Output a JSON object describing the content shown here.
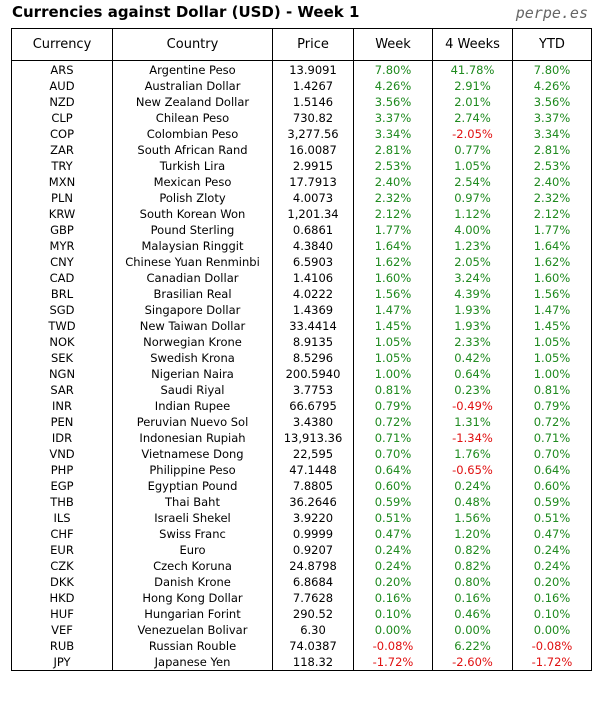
{
  "header": {
    "title": "Currencies against Dollar (USD) - Week 1",
    "site": "perpe.es"
  },
  "table": {
    "columns": [
      "Currency",
      "Country",
      "Price",
      "Week",
      "4 Weeks",
      "YTD"
    ],
    "rows": [
      [
        "ARS",
        "Argentine Peso",
        "13.9091",
        "7.80%",
        "41.78%",
        "7.80%"
      ],
      [
        "AUD",
        "Australian Dollar",
        "1.4267",
        "4.26%",
        "2.91%",
        "4.26%"
      ],
      [
        "NZD",
        "New Zealand Dollar",
        "1.5146",
        "3.56%",
        "2.01%",
        "3.56%"
      ],
      [
        "CLP",
        "Chilean Peso",
        "730.82",
        "3.37%",
        "2.74%",
        "3.37%"
      ],
      [
        "COP",
        "Colombian Peso",
        "3,277.56",
        "3.34%",
        "-2.05%",
        "3.34%"
      ],
      [
        "ZAR",
        "South African Rand",
        "16.0087",
        "2.81%",
        "0.77%",
        "2.81%"
      ],
      [
        "TRY",
        "Turkish Lira",
        "2.9915",
        "2.53%",
        "1.05%",
        "2.53%"
      ],
      [
        "MXN",
        "Mexican Peso",
        "17.7913",
        "2.40%",
        "2.54%",
        "2.40%"
      ],
      [
        "PLN",
        "Polish Zloty",
        "4.0073",
        "2.32%",
        "0.97%",
        "2.32%"
      ],
      [
        "KRW",
        "South Korean Won",
        "1,201.34",
        "2.12%",
        "1.12%",
        "2.12%"
      ],
      [
        "GBP",
        "Pound Sterling",
        "0.6861",
        "1.77%",
        "4.00%",
        "1.77%"
      ],
      [
        "MYR",
        "Malaysian Ringgit",
        "4.3840",
        "1.64%",
        "1.23%",
        "1.64%"
      ],
      [
        "CNY",
        "Chinese Yuan Renminbi",
        "6.5903",
        "1.62%",
        "2.05%",
        "1.62%"
      ],
      [
        "CAD",
        "Canadian Dollar",
        "1.4106",
        "1.60%",
        "3.24%",
        "1.60%"
      ],
      [
        "BRL",
        "Brasilian Real",
        "4.0222",
        "1.56%",
        "4.39%",
        "1.56%"
      ],
      [
        "SGD",
        "Singapore Dollar",
        "1.4369",
        "1.47%",
        "1.93%",
        "1.47%"
      ],
      [
        "TWD",
        "New Taiwan Dollar",
        "33.4414",
        "1.45%",
        "1.93%",
        "1.45%"
      ],
      [
        "NOK",
        "Norwegian Krone",
        "8.9135",
        "1.05%",
        "2.33%",
        "1.05%"
      ],
      [
        "SEK",
        "Swedish Krona",
        "8.5296",
        "1.05%",
        "0.42%",
        "1.05%"
      ],
      [
        "NGN",
        "Nigerian Naira",
        "200.5940",
        "1.00%",
        "0.64%",
        "1.00%"
      ],
      [
        "SAR",
        "Saudi Riyal",
        "3.7753",
        "0.81%",
        "0.23%",
        "0.81%"
      ],
      [
        "INR",
        "Indian Rupee",
        "66.6795",
        "0.79%",
        "-0.49%",
        "0.79%"
      ],
      [
        "PEN",
        "Peruvian Nuevo Sol",
        "3.4380",
        "0.72%",
        "1.31%",
        "0.72%"
      ],
      [
        "IDR",
        "Indonesian Rupiah",
        "13,913.36",
        "0.71%",
        "-1.34%",
        "0.71%"
      ],
      [
        "VND",
        "Vietnamese Dong",
        "22,595",
        "0.70%",
        "1.76%",
        "0.70%"
      ],
      [
        "PHP",
        "Philippine Peso",
        "47.1448",
        "0.64%",
        "-0.65%",
        "0.64%"
      ],
      [
        "EGP",
        "Egyptian Pound",
        "7.8805",
        "0.60%",
        "0.24%",
        "0.60%"
      ],
      [
        "THB",
        "Thai Baht",
        "36.2646",
        "0.59%",
        "0.48%",
        "0.59%"
      ],
      [
        "ILS",
        "Israeli Shekel",
        "3.9220",
        "0.51%",
        "1.56%",
        "0.51%"
      ],
      [
        "CHF",
        "Swiss Franc",
        "0.9999",
        "0.47%",
        "1.20%",
        "0.47%"
      ],
      [
        "EUR",
        "Euro",
        "0.9207",
        "0.24%",
        "0.82%",
        "0.24%"
      ],
      [
        "CZK",
        "Czech Koruna",
        "24.8798",
        "0.24%",
        "0.82%",
        "0.24%"
      ],
      [
        "DKK",
        "Danish Krone",
        "6.8684",
        "0.20%",
        "0.80%",
        "0.20%"
      ],
      [
        "HKD",
        "Hong Kong Dollar",
        "7.7628",
        "0.16%",
        "0.16%",
        "0.16%"
      ],
      [
        "HUF",
        "Hungarian Forint",
        "290.52",
        "0.10%",
        "0.46%",
        "0.10%"
      ],
      [
        "VEF",
        "Venezuelan Bolivar",
        "6.30",
        "0.00%",
        "0.00%",
        "0.00%"
      ],
      [
        "RUB",
        "Russian Rouble",
        "74.0387",
        "-0.08%",
        "6.22%",
        "-0.08%"
      ],
      [
        "JPY",
        "Japanese Yen",
        "118.32",
        "-1.72%",
        "-2.60%",
        "-1.72%"
      ]
    ]
  }
}
